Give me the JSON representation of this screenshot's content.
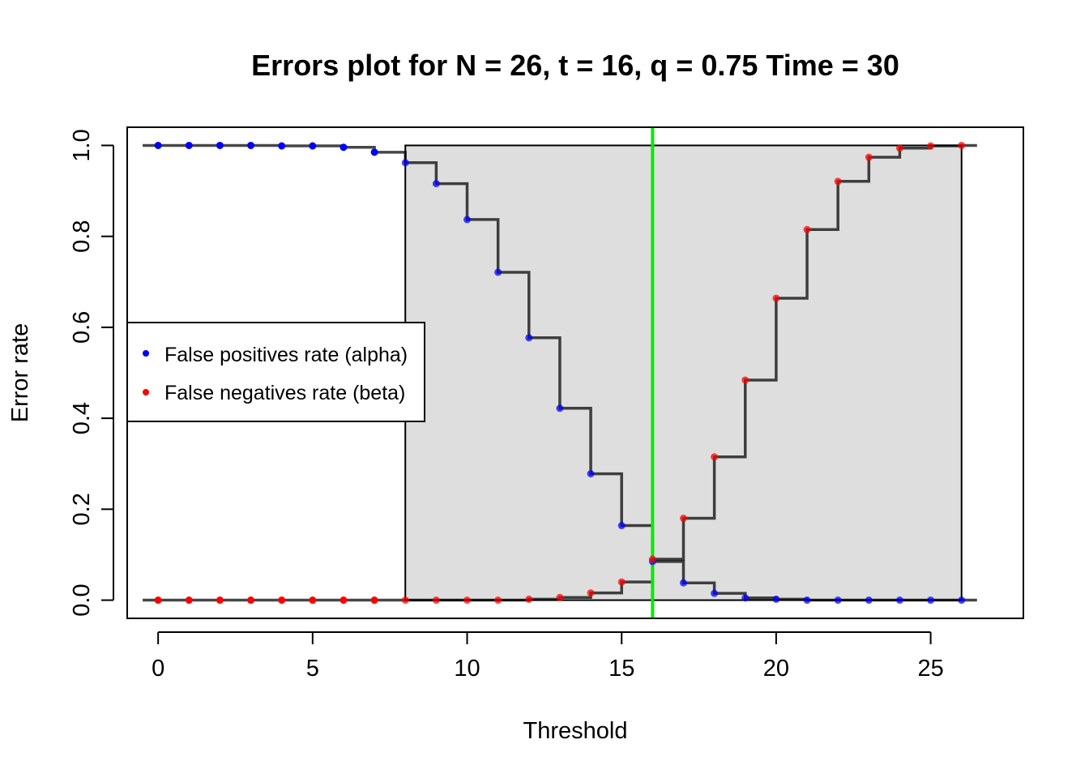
{
  "chart_data": {
    "type": "line",
    "title": "Errors plot for N = 26, t = 16, q = 0.75 Time = 30",
    "xlabel": "Threshold",
    "ylabel": "Error rate",
    "xlim": [
      -1,
      28
    ],
    "ylim": [
      -0.04,
      1.04
    ],
    "x_ticks": [
      0,
      5,
      10,
      15,
      20,
      25
    ],
    "y_ticks": [
      0.0,
      0.2,
      0.4,
      0.6,
      0.8,
      1.0
    ],
    "y_tick_labels": [
      "0.0",
      "0.2",
      "0.4",
      "0.6",
      "0.8",
      "1.0"
    ],
    "x_tick_labels": [
      "0",
      "5",
      "10",
      "15",
      "20",
      "25"
    ],
    "grid": false,
    "legend_position": "left",
    "shaded_region": {
      "x": [
        8,
        26
      ],
      "y": [
        0,
        1
      ],
      "color": "#dedede"
    },
    "vertical_line": {
      "x": 16,
      "color": "#00ee00"
    },
    "x": [
      0,
      1,
      2,
      3,
      4,
      5,
      6,
      7,
      8,
      9,
      10,
      11,
      12,
      13,
      14,
      15,
      16,
      17,
      18,
      19,
      20,
      21,
      22,
      23,
      24,
      25,
      26
    ],
    "series": [
      {
        "name": "False positives rate (alpha)",
        "color": "#0000ff",
        "values": [
          1.0,
          1.0,
          1.0,
          1.0,
          0.999,
          0.999,
          0.996,
          0.985,
          0.962,
          0.916,
          0.837,
          0.721,
          0.577,
          0.422,
          0.278,
          0.164,
          0.085,
          0.038,
          0.015,
          0.005,
          0.002,
          0.0,
          0.0,
          0.0,
          0.0,
          0.0,
          0.0
        ]
      },
      {
        "name": "False negatives rate (beta)",
        "color": "#ff0000",
        "values": [
          0.0,
          0.0,
          0.0,
          0.0,
          0.0,
          0.0,
          0.0,
          0.0,
          0.0,
          0.0,
          0.0,
          0.0,
          0.002,
          0.006,
          0.016,
          0.04,
          0.09,
          0.18,
          0.315,
          0.484,
          0.664,
          0.815,
          0.921,
          0.974,
          0.994,
          0.999,
          1.0
        ]
      }
    ]
  }
}
